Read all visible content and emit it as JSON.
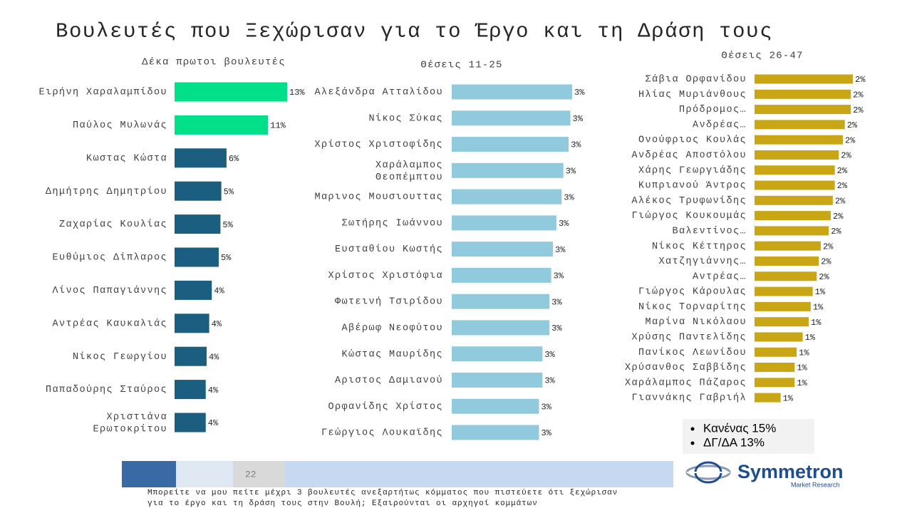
{
  "title": "Βουλευτές που Ξεχώρισαν για το Έργο και τη Δράση τους",
  "chart_data": [
    {
      "type": "bar",
      "orientation": "horizontal",
      "subtitle": "Δέκα πρωτοι βουλευτές",
      "categories": [
        "Ειρήνη Χαραλαμπίδου",
        "Παύλος Μυλωνάς",
        "Κωστας Κώστα",
        "Δημήτρης Δημητρίου",
        "Ζαχαρίας Κουλίας",
        "Ευθύμιος Δίπλαρος",
        "Λίνος Παπαγιάννης",
        "Αντρέας Καυκαλιάς",
        "Νίκος Γεωργίου",
        "Παπαδούρης Σταύρος",
        "Χριστιάνα\nΕρωτοκρίτου"
      ],
      "values": [
        13,
        10.8,
        6,
        5.4,
        5.3,
        5.1,
        4.3,
        4,
        3.7,
        3.6,
        3.6
      ],
      "value_labels": [
        "13%",
        "11%",
        "6%",
        "5%",
        "5%",
        "5%",
        "4%",
        "4%",
        "4%",
        "4%",
        "4%"
      ],
      "colors": [
        "#00e08a",
        "#00e08a",
        "#1b5e80",
        "#1b5e80",
        "#1b5e80",
        "#1b5e80",
        "#1b5e80",
        "#1b5e80",
        "#1b5e80",
        "#1b5e80",
        "#1b5e80"
      ]
    },
    {
      "type": "bar",
      "orientation": "horizontal",
      "subtitle": "Θέσεις 11-25",
      "categories": [
        "Αλεξάνδρα Ατταλίδου",
        "Νίκος Σύκας",
        "Χρίστος Χριστοφίδης",
        "Χαράλαμπος\nΘεοπέμπτου",
        "Μαρινος Μουσιουττας",
        "Σωτήρης Ιωάννου",
        "Ευσταθίου Κωστής",
        "Χρίστος Χριστόφια",
        "Φωτεινή Τσιρίδου",
        "Αβέρωφ Νεοφύτου",
        "Κώστας Μαυρίδης",
        "Αριστος Δαμιανού",
        "Ορφανίδης Χρίστος",
        "Γεώργιος Λουκαϊδης"
      ],
      "values": [
        3.45,
        3.4,
        3.35,
        3.2,
        3.15,
        3.0,
        2.9,
        2.85,
        2.8,
        2.8,
        2.6,
        2.6,
        2.5,
        2.5
      ],
      "value_labels": [
        "3%",
        "3%",
        "3%",
        "3%",
        "3%",
        "3%",
        "3%",
        "3%",
        "3%",
        "3%",
        "3%",
        "3%",
        "3%",
        "3%"
      ],
      "color": "#92cadd"
    },
    {
      "type": "bar",
      "orientation": "horizontal",
      "subtitle": "Θέσεις 26-47",
      "categories": [
        "Σάβια Ορφανίδου",
        "Ηλίας Μυριάνθους",
        "Πρόδρομος…",
        "Ανδρέας…",
        "Ονούφριος Κουλάς",
        "Ανδρέας Αποστόλου",
        "Χάρης Γεωργιάδης",
        "Κυπριανού Άντρος",
        "Αλέκος Τρυφωνίδης",
        "Γιώργος Κουκουμάς",
        "Βαλεντίνος…",
        "Νίκος Κέττηρος",
        "Χατζηγιάννης…",
        "Αντρέας…",
        "Γιώργος Κάρουλας",
        "Νίκος Τορναρίτης",
        "Μαρίνα Νικόλαου",
        "Χρύσης Παντελίδης",
        "Πανίκος Λεωνίδου",
        "Χρύσανθος Σαββίδης",
        "Χαράλαμπος Πάζαρος",
        "Γιαννάκης Γαβριήλ"
      ],
      "values": [
        2.45,
        2.4,
        2.4,
        2.25,
        2.2,
        2.1,
        2.0,
        2.0,
        1.95,
        1.9,
        1.85,
        1.65,
        1.6,
        1.55,
        1.45,
        1.4,
        1.35,
        1.2,
        1.05,
        1.0,
        1.0,
        0.65
      ],
      "value_labels": [
        "2%",
        "2%",
        "2%",
        "2%",
        "2%",
        "2%",
        "2%",
        "2%",
        "2%",
        "2%",
        "2%",
        "2%",
        "2%",
        "2%",
        "1%",
        "1%",
        "1%",
        "1%",
        "1%",
        "1%",
        "1%",
        "1%"
      ],
      "color": "#c9a615"
    }
  ],
  "notes": [
    "Κανένας 15%",
    "ΔΓ/ΔΑ 13%"
  ],
  "page_number": "22",
  "footnote": [
    "Μπορείτε να μου πείτε μέχρι 3 βουλευτές ανεξαρτήτως κόμματος που πιστεύετε ότι ξεχώρισαν",
    "για το έργο και τη δράση τους στην Βουλή; Εξαιρούνται οι αρχηγοί κομμάτων"
  ],
  "logo": {
    "name": "Symmetron",
    "tagline": "Market Research"
  }
}
